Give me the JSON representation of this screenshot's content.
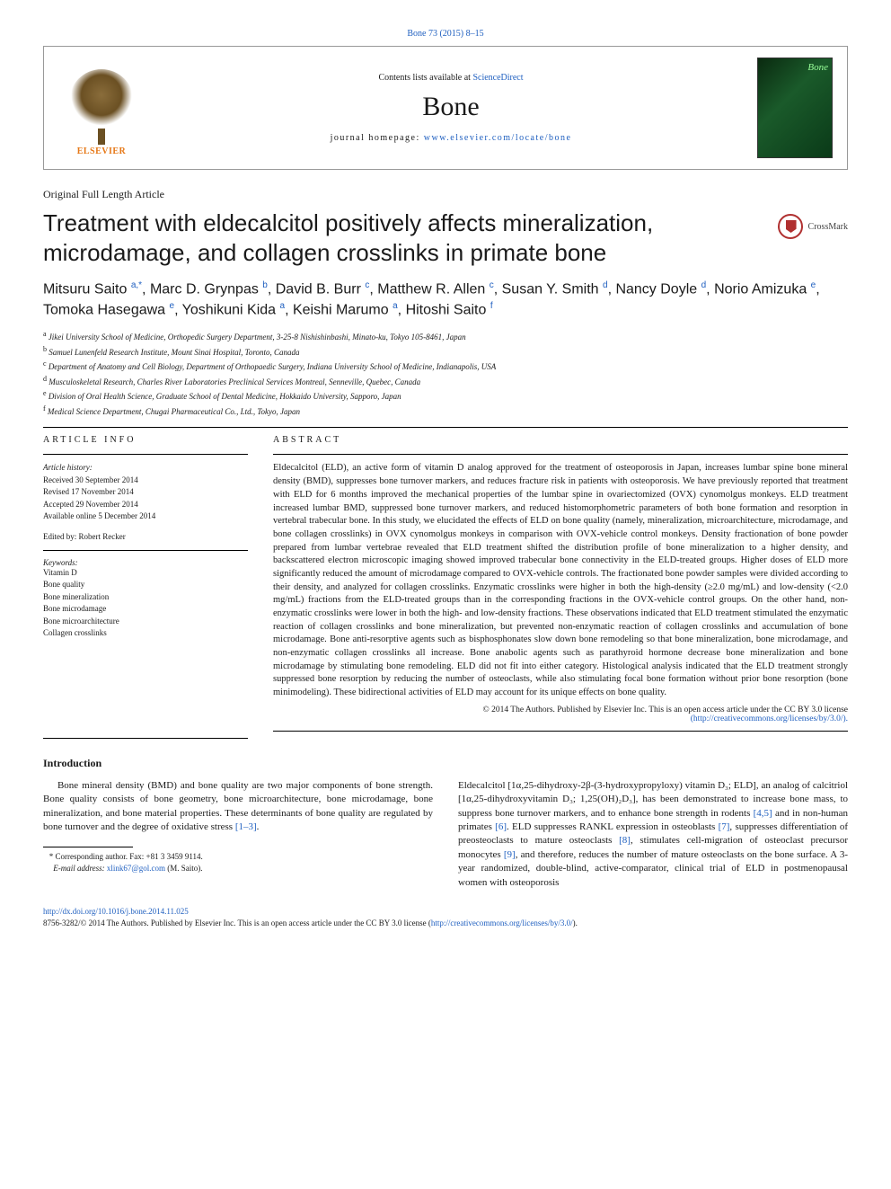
{
  "journalRef": {
    "text": "Bone 73 (2015) 8–15",
    "link_color": "#2060c0"
  },
  "headerBox": {
    "publisher_logo_text": "ELSEVIER",
    "contents_prefix": "Contents lists available at ",
    "contents_link": "ScienceDirect",
    "journal_name": "Bone",
    "homepage_prefix": "journal homepage: ",
    "homepage_url": "www.elsevier.com/locate/bone",
    "cover_label": "Bone",
    "colors": {
      "logo_orange": "#e67817",
      "link_blue": "#2060c0",
      "cover_bg_start": "#0a2a10",
      "cover_bg_mid": "#1a5a2a",
      "cover_bg_end": "#0a3a18"
    }
  },
  "articleType": "Original Full Length Article",
  "title": "Treatment with eldecalcitol positively affects mineralization, microdamage, and collagen crosslinks in primate bone",
  "crossmark_label": "CrossMark",
  "authors_html": "Mitsuru Saito <sup>a,*</sup>, Marc D. Grynpas <sup>b</sup>, David B. Burr <sup>c</sup>, Matthew R. Allen <sup>c</sup>, Susan Y. Smith <sup>d</sup>, Nancy Doyle <sup>d</sup>, Norio Amizuka <sup>e</sup>, Tomoka Hasegawa <sup>e</sup>, Yoshikuni Kida <sup>a</sup>, Keishi Marumo <sup>a</sup>, Hitoshi Saito <sup>f</sup>",
  "affiliations": [
    {
      "sup": "a",
      "text": "Jikei University School of Medicine, Orthopedic Surgery Department, 3-25-8 Nishishinbashi, Minato-ku, Tokyo 105-8461, Japan"
    },
    {
      "sup": "b",
      "text": "Samuel Lunenfeld Research Institute, Mount Sinai Hospital, Toronto, Canada"
    },
    {
      "sup": "c",
      "text": "Department of Anatomy and Cell Biology, Department of Orthopaedic Surgery, Indiana University School of Medicine, Indianapolis, USA"
    },
    {
      "sup": "d",
      "text": "Musculoskeletal Research, Charles River Laboratories Preclinical Services Montreal, Senneville, Quebec, Canada"
    },
    {
      "sup": "e",
      "text": "Division of Oral Health Science, Graduate School of Dental Medicine, Hokkaido University, Sapporo, Japan"
    },
    {
      "sup": "f",
      "text": "Medical Science Department, Chugai Pharmaceutical Co., Ltd., Tokyo, Japan"
    }
  ],
  "articleInfo": {
    "heading": "ARTICLE INFO",
    "history_label": "Article history:",
    "history": [
      "Received 30 September 2014",
      "Revised 17 November 2014",
      "Accepted 29 November 2014",
      "Available online 5 December 2014"
    ],
    "edited_by": "Edited by: Robert Recker",
    "keywords_label": "Keywords:",
    "keywords": [
      "Vitamin D",
      "Bone quality",
      "Bone mineralization",
      "Bone microdamage",
      "Bone microarchitecture",
      "Collagen crosslinks"
    ]
  },
  "abstract": {
    "heading": "ABSTRACT",
    "text": "Eldecalcitol (ELD), an active form of vitamin D analog approved for the treatment of osteoporosis in Japan, increases lumbar spine bone mineral density (BMD), suppresses bone turnover markers, and reduces fracture risk in patients with osteoporosis. We have previously reported that treatment with ELD for 6 months improved the mechanical properties of the lumbar spine in ovariectomized (OVX) cynomolgus monkeys. ELD treatment increased lumbar BMD, suppressed bone turnover markers, and reduced histomorphometric parameters of both bone formation and resorption in vertebral trabecular bone. In this study, we elucidated the effects of ELD on bone quality (namely, mineralization, microarchitecture, microdamage, and bone collagen crosslinks) in OVX cynomolgus monkeys in comparison with OVX-vehicle control monkeys. Density fractionation of bone powder prepared from lumbar vertebrae revealed that ELD treatment shifted the distribution profile of bone mineralization to a higher density, and backscattered electron microscopic imaging showed improved trabecular bone connectivity in the ELD-treated groups. Higher doses of ELD more significantly reduced the amount of microdamage compared to OVX-vehicle controls. The fractionated bone powder samples were divided according to their density, and analyzed for collagen crosslinks. Enzymatic crosslinks were higher in both the high-density (≥2.0 mg/mL) and low-density (<2.0 mg/mL) fractions from the ELD-treated groups than in the corresponding fractions in the OVX-vehicle control groups. On the other hand, non-enzymatic crosslinks were lower in both the high- and low-density fractions. These observations indicated that ELD treatment stimulated the enzymatic reaction of collagen crosslinks and bone mineralization, but prevented non-enzymatic reaction of collagen crosslinks and accumulation of bone microdamage. Bone anti-resorptive agents such as bisphosphonates slow down bone remodeling so that bone mineralization, bone microdamage, and non-enzymatic collagen crosslinks all increase. Bone anabolic agents such as parathyroid hormone decrease bone mineralization and bone microdamage by stimulating bone remodeling. ELD did not fit into either category. Histological analysis indicated that the ELD treatment strongly suppressed bone resorption by reducing the number of osteoclasts, while also stimulating focal bone formation without prior bone resorption (bone minimodeling). These bidirectional activities of ELD may account for its unique effects on bone quality.",
    "copyright_line": "© 2014 The Authors. Published by Elsevier Inc. This is an open access article under the CC BY 3.0 license",
    "license_url_text": "(http://creativecommons.org/licenses/by/3.0/)."
  },
  "introduction": {
    "heading": "Introduction",
    "col1": "Bone mineral density (BMD) and bone quality are two major components of bone strength. Bone quality consists of bone geometry, bone microarchitecture, bone microdamage, bone mineralization, and bone material properties. These determinants of bone quality are regulated by bone turnover and the degree of oxidative stress ",
    "col1_ref": "[1–3]",
    "col1_suffix": ".",
    "col2_prefix": "Eldecalcitol [1α,25-dihydroxy-2β-(3-hydroxypropyloxy) vitamin D₃; ELD], an analog of calcitriol [1α,25-dihydroxyvitamin D₃; 1,25(OH)₂D₃], has been demonstrated to increase bone mass, to suppress bone turnover markers, and to enhance bone strength in rodents ",
    "col2_ref1": "[4,5]",
    "col2_mid1": " and in non-human primates ",
    "col2_ref2": "[6]",
    "col2_mid2": ". ELD suppresses RANKL expression in osteoblasts ",
    "col2_ref3": "[7]",
    "col2_mid3": ", suppresses differentiation of preosteoclasts to mature osteoclasts ",
    "col2_ref4": "[8]",
    "col2_mid4": ", stimulates cell-migration of osteoclast precursor monocytes ",
    "col2_ref5": "[9]",
    "col2_end": ", and therefore, reduces the number of mature osteoclasts on the bone surface. A 3-year randomized, double-blind, active-comparator, clinical trial of ELD in postmenopausal women with osteoporosis"
  },
  "correspondence": {
    "star": "*",
    "line": "Corresponding author. Fax: +81 3 3459 9114.",
    "email_label": "E-mail address:",
    "email": "xlink67@gol.com",
    "email_suffix": "(M. Saito)."
  },
  "footer": {
    "doi": "http://dx.doi.org/10.1016/j.bone.2014.11.025",
    "issn_line": "8756-3282/© 2014 The Authors. Published by Elsevier Inc. This is an open access article under the CC BY 3.0 license (",
    "license_url": "http://creativecommons.org/licenses/by/3.0/",
    "issn_suffix": ")."
  },
  "typography": {
    "title_fontsize": 26,
    "authors_fontsize": 16,
    "body_fontsize": 11,
    "abstract_fontsize": 10.5,
    "small_fontsize": 9,
    "journal_big_fontsize": 30
  },
  "colors": {
    "text": "#1a1a1a",
    "link": "#2060c0",
    "rule": "#000000",
    "header_border": "#999999",
    "crossmark_red": "#b03030"
  }
}
